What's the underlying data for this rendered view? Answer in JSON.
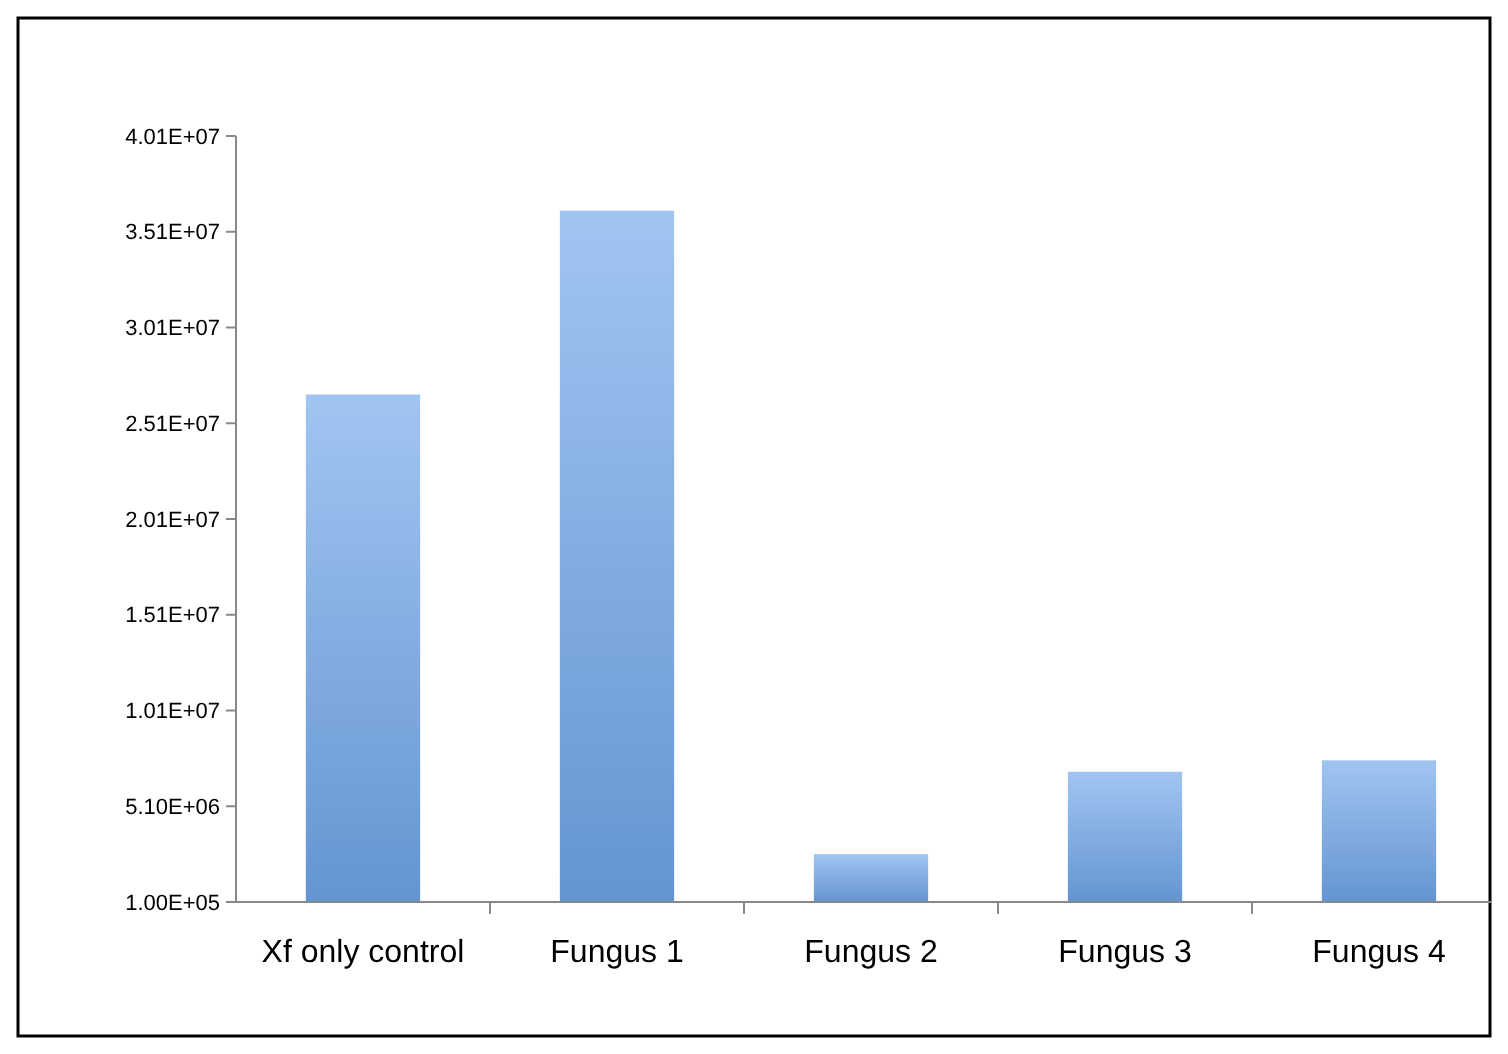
{
  "chart_data": {
    "type": "bar",
    "categories": [
      "Xf only control",
      "Fungus 1",
      "Fungus 2",
      "Fungus 3",
      "Fungus 4"
    ],
    "values": [
      26600000,
      36200000,
      2600000,
      6900000,
      7500000
    ],
    "color": "#6fa6ea",
    "ylim": [
      100000,
      40100000
    ],
    "yticks": [
      {
        "value": 100000,
        "label": "1.00E+05"
      },
      {
        "value": 5100000,
        "label": "5.10E+06"
      },
      {
        "value": 10100000,
        "label": "1.01E+07"
      },
      {
        "value": 15100000,
        "label": "1.51E+07"
      },
      {
        "value": 20100000,
        "label": "2.01E+07"
      },
      {
        "value": 25100000,
        "label": "2.51E+07"
      },
      {
        "value": 30100000,
        "label": "3.01E+07"
      },
      {
        "value": 35100000,
        "label": "3.51E+07"
      },
      {
        "value": 40100000,
        "label": "4.01E+07"
      }
    ],
    "grid": false
  }
}
